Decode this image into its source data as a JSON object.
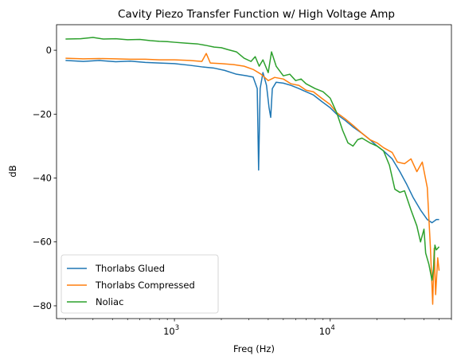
{
  "chart_data": {
    "type": "line",
    "title": "Cavity Piezo Transfer Function w/ High Voltage Amp",
    "xlabel": "Freq (Hz)",
    "ylabel": "dB",
    "xscale": "log",
    "xlim": [
      175,
      60000
    ],
    "ylim": [
      -84,
      8
    ],
    "xticks": [
      {
        "value": 1000,
        "base": "10",
        "exp": "3"
      },
      {
        "value": 10000,
        "base": "10",
        "exp": "4"
      }
    ],
    "yticks": [
      0,
      -20,
      -40,
      -60,
      -80
    ],
    "ytick_labels": [
      "0",
      "−20",
      "−40",
      "−60",
      "−80"
    ],
    "grid": false,
    "legend_position": "lower-left",
    "series": [
      {
        "name": "Thorlabs Glued",
        "color": "#1f77b4",
        "points": [
          [
            200,
            -3.2
          ],
          [
            260,
            -3.5
          ],
          [
            330,
            -3.2
          ],
          [
            420,
            -3.6
          ],
          [
            520,
            -3.4
          ],
          [
            650,
            -3.8
          ],
          [
            800,
            -4.0
          ],
          [
            1000,
            -4.2
          ],
          [
            1250,
            -4.7
          ],
          [
            1500,
            -5.2
          ],
          [
            1800,
            -5.6
          ],
          [
            2100,
            -6.3
          ],
          [
            2500,
            -7.5
          ],
          [
            2900,
            -8.0
          ],
          [
            3200,
            -8.4
          ],
          [
            3400,
            -12
          ],
          [
            3470,
            -37.5
          ],
          [
            3550,
            -12
          ],
          [
            3700,
            -7
          ],
          [
            3900,
            -11
          ],
          [
            4050,
            -18
          ],
          [
            4150,
            -21
          ],
          [
            4250,
            -12
          ],
          [
            4500,
            -10
          ],
          [
            5000,
            -10.3
          ],
          [
            5600,
            -11
          ],
          [
            6300,
            -12
          ],
          [
            7000,
            -13
          ],
          [
            7800,
            -14
          ],
          [
            8800,
            -16
          ],
          [
            10000,
            -18
          ],
          [
            11000,
            -20
          ],
          [
            12500,
            -22
          ],
          [
            14000,
            -24
          ],
          [
            16000,
            -26
          ],
          [
            18000,
            -28
          ],
          [
            20000,
            -30
          ],
          [
            22000,
            -31.5
          ],
          [
            25000,
            -34
          ],
          [
            28000,
            -38
          ],
          [
            31000,
            -42
          ],
          [
            34000,
            -46
          ],
          [
            38000,
            -50
          ],
          [
            42000,
            -53
          ],
          [
            45000,
            -54
          ],
          [
            48000,
            -53
          ],
          [
            50000,
            -53
          ]
        ]
      },
      {
        "name": "Thorlabs Compressed",
        "color": "#ff7f0e",
        "points": [
          [
            200,
            -2.5
          ],
          [
            260,
            -2.7
          ],
          [
            330,
            -2.6
          ],
          [
            420,
            -2.7
          ],
          [
            520,
            -2.8
          ],
          [
            650,
            -2.8
          ],
          [
            800,
            -3.0
          ],
          [
            1000,
            -3.0
          ],
          [
            1250,
            -3.2
          ],
          [
            1500,
            -3.5
          ],
          [
            1600,
            -1.0
          ],
          [
            1700,
            -4.0
          ],
          [
            2000,
            -4.2
          ],
          [
            2400,
            -4.5
          ],
          [
            2800,
            -5.0
          ],
          [
            3200,
            -6.0
          ],
          [
            3600,
            -7.5
          ],
          [
            4000,
            -9.5
          ],
          [
            4400,
            -8.5
          ],
          [
            5000,
            -9.0
          ],
          [
            5600,
            -10.5
          ],
          [
            6300,
            -11.0
          ],
          [
            7000,
            -12.5
          ],
          [
            7800,
            -13.0
          ],
          [
            8800,
            -15.0
          ],
          [
            10000,
            -17.0
          ],
          [
            11000,
            -19.5
          ],
          [
            12500,
            -21.5
          ],
          [
            14000,
            -23.5
          ],
          [
            16000,
            -26.0
          ],
          [
            18000,
            -28.0
          ],
          [
            20000,
            -29.0
          ],
          [
            22000,
            -30.5
          ],
          [
            25000,
            -32.0
          ],
          [
            27000,
            -35.0
          ],
          [
            30000,
            -35.5
          ],
          [
            33000,
            -34.0
          ],
          [
            36000,
            -38.0
          ],
          [
            39000,
            -35.0
          ],
          [
            42000,
            -43.0
          ],
          [
            44000,
            -62.0
          ],
          [
            45500,
            -79.5
          ],
          [
            46500,
            -62.0
          ],
          [
            47500,
            -76.5
          ],
          [
            49000,
            -65.0
          ],
          [
            50000,
            -69.0
          ]
        ]
      },
      {
        "name": "Noliac",
        "color": "#2ca02c",
        "points": [
          [
            200,
            3.5
          ],
          [
            250,
            3.6
          ],
          [
            300,
            4.0
          ],
          [
            350,
            3.5
          ],
          [
            420,
            3.6
          ],
          [
            500,
            3.3
          ],
          [
            600,
            3.4
          ],
          [
            700,
            3.0
          ],
          [
            800,
            2.8
          ],
          [
            900,
            2.7
          ],
          [
            1000,
            2.5
          ],
          [
            1200,
            2.2
          ],
          [
            1400,
            2.0
          ],
          [
            1600,
            1.5
          ],
          [
            1800,
            1.0
          ],
          [
            2000,
            0.8
          ],
          [
            2200,
            0.2
          ],
          [
            2500,
            -0.5
          ],
          [
            2800,
            -2.5
          ],
          [
            3100,
            -3.5
          ],
          [
            3300,
            -2.0
          ],
          [
            3500,
            -5.0
          ],
          [
            3700,
            -3.0
          ],
          [
            4000,
            -7.0
          ],
          [
            4200,
            -0.5
          ],
          [
            4500,
            -5.0
          ],
          [
            5000,
            -8.0
          ],
          [
            5500,
            -7.5
          ],
          [
            6000,
            -9.5
          ],
          [
            6500,
            -9.0
          ],
          [
            7000,
            -10.5
          ],
          [
            8000,
            -12.0
          ],
          [
            9000,
            -13.0
          ],
          [
            10000,
            -15.0
          ],
          [
            11000,
            -19.5
          ],
          [
            12000,
            -25.0
          ],
          [
            13000,
            -29.0
          ],
          [
            14000,
            -30.0
          ],
          [
            15000,
            -28.0
          ],
          [
            16000,
            -27.5
          ],
          [
            18000,
            -29.0
          ],
          [
            20000,
            -30.0
          ],
          [
            22000,
            -31.5
          ],
          [
            24000,
            -36.0
          ],
          [
            26000,
            -43.5
          ],
          [
            28000,
            -44.5
          ],
          [
            30000,
            -44.0
          ],
          [
            33000,
            -50.0
          ],
          [
            36000,
            -55.0
          ],
          [
            38000,
            -60.0
          ],
          [
            40000,
            -56.0
          ],
          [
            41000,
            -63.5
          ],
          [
            43000,
            -67.0
          ],
          [
            45000,
            -72.0
          ],
          [
            46000,
            -68.5
          ],
          [
            47000,
            -61.0
          ],
          [
            48000,
            -62.5
          ],
          [
            50000,
            -61.5
          ]
        ]
      }
    ]
  }
}
